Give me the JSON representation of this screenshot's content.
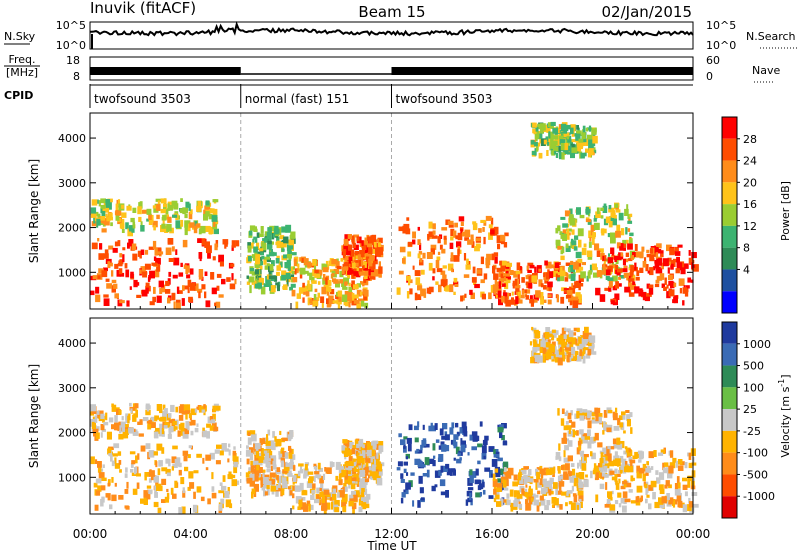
{
  "header": {
    "station": "Inuvik (fitACF)",
    "beam": "Beam 15",
    "date": "02/Jan/2015"
  },
  "strip_labels": {
    "nsky": "N.Sky",
    "nsearch": "N.Search",
    "freq_line1": "Freq.",
    "freq_line2": "[MHz]",
    "nave": "Nave",
    "cpid": "CPID",
    "noise_ticks_left": [
      "10^5",
      "10^0"
    ],
    "noise_ticks_right": [
      "10^5",
      "10^0"
    ],
    "freq_ticks": [
      "18",
      "8"
    ],
    "nave_ticks": [
      "60",
      "0"
    ]
  },
  "cpid_segments": [
    {
      "label": "twofsound 3503",
      "start": "00:00",
      "end": "06:00"
    },
    {
      "label": "normal (fast) 151",
      "start": "06:00",
      "end": "12:00"
    },
    {
      "label": "twofsound 3503",
      "start": "12:00",
      "end": "24:00"
    }
  ],
  "chart_data": [
    {
      "type": "heatmap",
      "title": "Power",
      "xlabel": "",
      "ylabel": "Slant Range [km]",
      "x_ticks": [
        "00:00",
        "04:00",
        "08:00",
        "12:00",
        "16:00",
        "20:00",
        "00:00"
      ],
      "y_ticks": [
        "1000",
        "2000",
        "3000",
        "4000"
      ],
      "xlim_hours": [
        0,
        24
      ],
      "ylim_km": [
        180,
        4560
      ],
      "colorbar": {
        "label": "Power [dB]",
        "ticks": [
          "28",
          "24",
          "20",
          "16",
          "12",
          "8",
          "4"
        ],
        "colors": [
          "#ff0000",
          "#ff4d00",
          "#ff8c1a",
          "#ffc31a",
          "#9acd32",
          "#3cb371",
          "#2e8b57",
          "#1e50a0",
          "#0000ff"
        ]
      }
    },
    {
      "type": "heatmap",
      "title": "Velocity",
      "xlabel": "Time UT",
      "ylabel": "Slant Range [km]",
      "x_ticks": [
        "00:00",
        "04:00",
        "08:00",
        "12:00",
        "16:00",
        "20:00",
        "00:00"
      ],
      "y_ticks": [
        "1000",
        "2000",
        "3000",
        "4000"
      ],
      "xlim_hours": [
        0,
        24
      ],
      "ylim_km": [
        180,
        4560
      ],
      "colorbar": {
        "label": "Velocity [m s",
        "label_sup": "-1",
        "label_close": "]",
        "ticks": [
          "1000",
          "500",
          "100",
          "25",
          "-25",
          "-100",
          "-500",
          "-1000"
        ],
        "colors": [
          "#1f3a9e",
          "#3a6bb5",
          "#2e8b57",
          "#6abf45",
          "#c8c8c8",
          "#ffb300",
          "#ff8c1a",
          "#ff4d00",
          "#e00000"
        ]
      }
    }
  ]
}
